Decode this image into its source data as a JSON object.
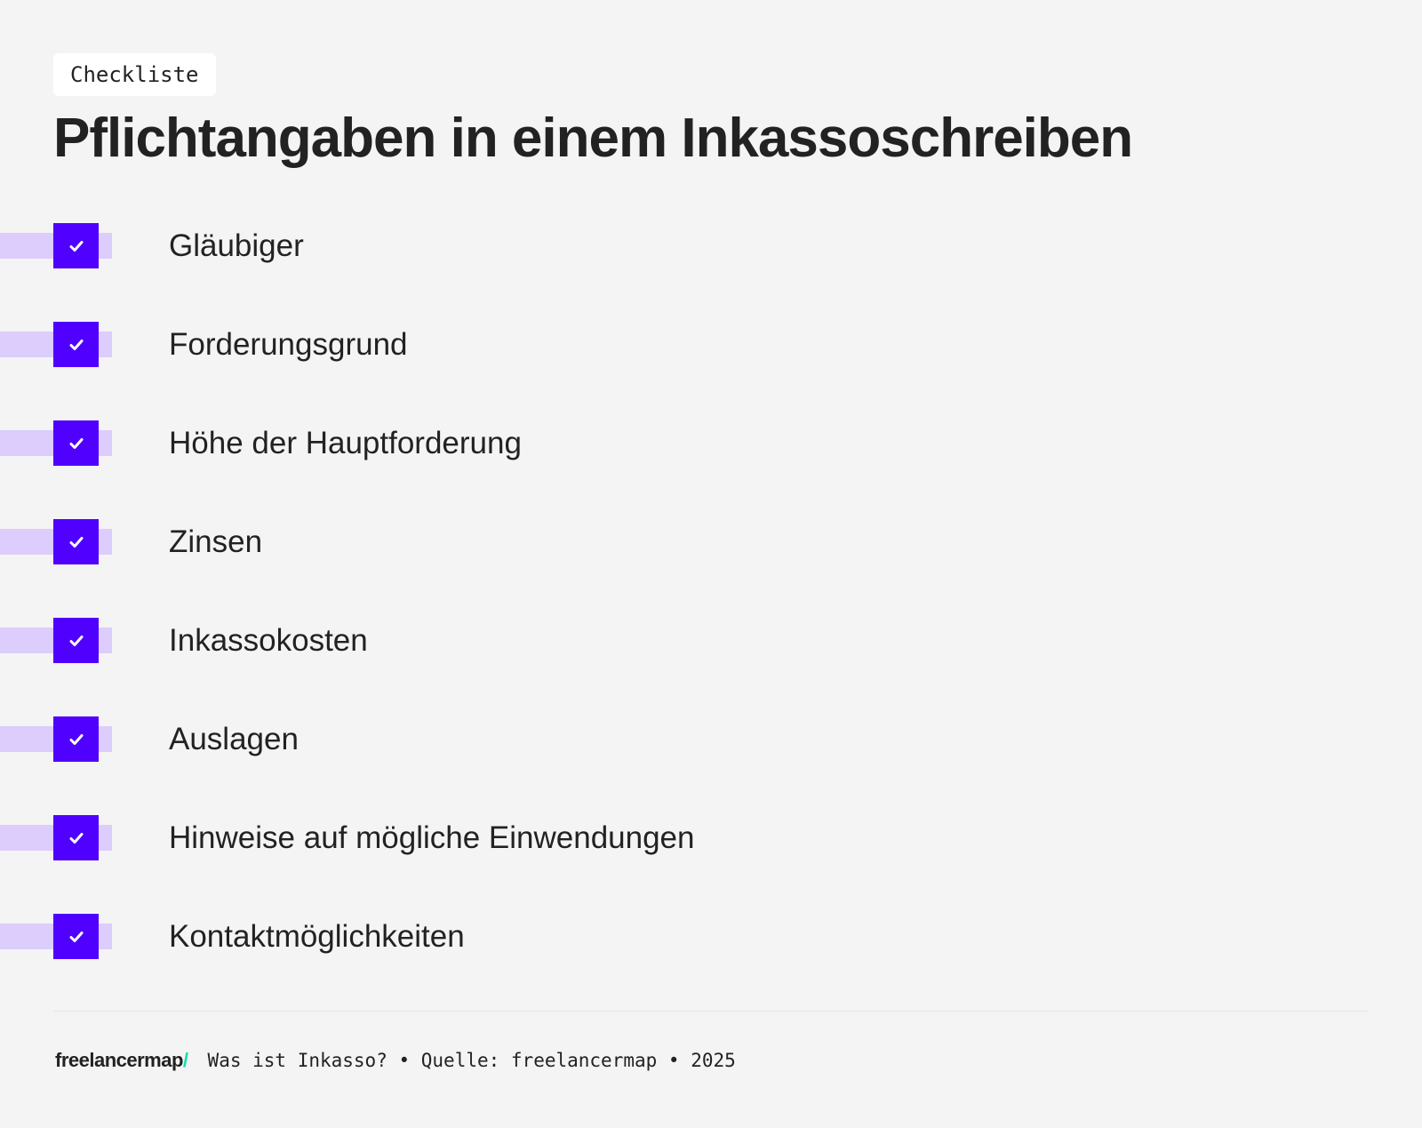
{
  "tag": "Checkliste",
  "title": "Pflichtangaben in einem Inkassoschreiben",
  "items": [
    {
      "label": "Gläubiger",
      "checked": true
    },
    {
      "label": "Forderungsgrund",
      "checked": true
    },
    {
      "label": "Höhe der Hauptforderung",
      "checked": true
    },
    {
      "label": "Zinsen",
      "checked": true
    },
    {
      "label": "Inkassokosten",
      "checked": true
    },
    {
      "label": "Auslagen",
      "checked": true
    },
    {
      "label": "Hinweise auf mögliche Einwendungen",
      "checked": true
    },
    {
      "label": "Kontaktmöglichkeiten",
      "checked": true
    }
  ],
  "footer": {
    "logo": "freelancermap",
    "logo_slash": "/",
    "text": "Was ist Inkasso? • Quelle: freelancermap • 2025"
  },
  "colors": {
    "accent": "#5000ff",
    "accent_light": "#dccdfc",
    "logo_accent": "#12e0b0",
    "background": "#f4f4f4"
  }
}
